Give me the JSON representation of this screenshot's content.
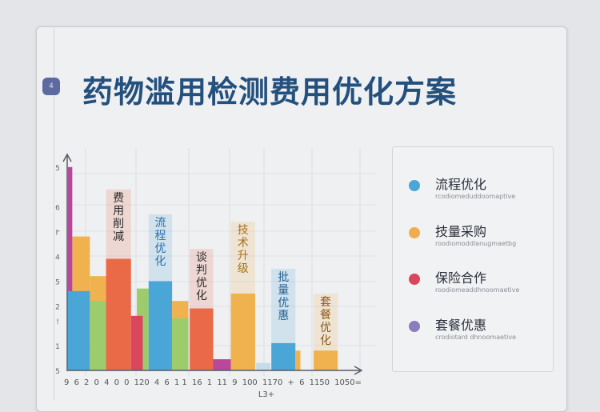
{
  "slide": {
    "badge": "4",
    "title": "药物滥用检测费用优化方案"
  },
  "legend": [
    {
      "label": "流程优化",
      "sub": "rcodiomeduddoomaptive",
      "color": "#4aa6d6"
    },
    {
      "label": "技量采购",
      "sub": "roodiomoddlanugmaetbg",
      "color": "#f0ad4e"
    },
    {
      "label": "保险合作",
      "sub": "roodiomeaddhnoomaetive",
      "color": "#d9465e"
    },
    {
      "label": "套餐优惠",
      "sub": "crodiotard dhnoomaetive",
      "color": "#8c7dbd"
    }
  ],
  "chart_data": {
    "type": "bar",
    "title": "",
    "xlabel": "L3+",
    "ylabel": "",
    "ylim": [
      0,
      8.6
    ],
    "xlim": [
      0,
      100
    ],
    "y_tick_labels": [
      {
        "v": 0,
        "t": "5"
      },
      {
        "v": 1,
        "t": "1"
      },
      {
        "v": 2,
        "t": "!"
      },
      {
        "v": 2.6,
        "t": "2"
      },
      {
        "v": 3.6,
        "t": "5"
      },
      {
        "v": 4.6,
        "t": "4"
      },
      {
        "v": 5.6,
        "t": "Ւ"
      },
      {
        "v": 6.6,
        "t": "6"
      },
      {
        "v": 8.2,
        "t": "5"
      }
    ],
    "x_tick_labels": [
      "9",
      "6",
      "2",
      "0",
      "4",
      "0",
      "0",
      "120",
      "4",
      "6",
      "1 1",
      "16",
      "1",
      "11",
      "9",
      "100",
      "1170",
      "+",
      "6",
      "1150",
      "1050="
    ],
    "bars": [
      {
        "x": [
          2,
          8
        ],
        "value": 5.4,
        "color": "#f0b24e"
      },
      {
        "x": [
          0.5,
          2
        ],
        "value": 8.2,
        "color": "#b9489a"
      },
      {
        "x": [
          0.5,
          8
        ],
        "value": 3.2,
        "color": "#4aa6d6"
      },
      {
        "x": [
          8,
          13.5
        ],
        "value": 3.8,
        "color": "#f0b24e"
      },
      {
        "x": [
          8,
          13.5
        ],
        "value": 2.8,
        "color": "#9ccc6b"
      },
      {
        "x": [
          13.5,
          22
        ],
        "value": 4.5,
        "color": "#ea6a48",
        "label": "费用削减",
        "label_top": 7.3
      },
      {
        "x": [
          24,
          28
        ],
        "value": 3.3,
        "color": "#9ccc6b"
      },
      {
        "x": [
          22,
          26
        ],
        "value": 2.2,
        "color": "#d9465e"
      },
      {
        "x": [
          28,
          36
        ],
        "value": 3.6,
        "color": "#4aa6d6",
        "label": "流程优化",
        "label_top": 6.3,
        "label_color": "#2a6fa8"
      },
      {
        "x": [
          36,
          41.5
        ],
        "value": 2.8,
        "color": "#f0b24e"
      },
      {
        "x": [
          36,
          41.5
        ],
        "value": 2.1,
        "color": "#9ccc6b"
      },
      {
        "x": [
          42,
          50
        ],
        "value": 2.5,
        "color": "#ea6a48",
        "label": "谈判优化",
        "label_top": 4.9
      },
      {
        "x": [
          50,
          56
        ],
        "value": 0.45,
        "color": "#b9489a"
      },
      {
        "x": [
          56,
          64.3
        ],
        "value": 3.1,
        "color": "#f0b24e",
        "label": "技术升级",
        "label_top": 6.0,
        "label_color": "#a8701a"
      },
      {
        "x": [
          64.6,
          69.5
        ],
        "value": 0.3,
        "color": "#c5dcea"
      },
      {
        "x": [
          69.8,
          78
        ],
        "value": 1.1,
        "color": "#4aa6d6",
        "label": "批量优惠",
        "label_top": 4.1,
        "label_color": "#1f5f95"
      },
      {
        "x": [
          78,
          79.7
        ],
        "value": 0.8,
        "color": "#f0b24e"
      },
      {
        "x": [
          84.2,
          92.4
        ],
        "value": 0.8,
        "color": "#f0b24e",
        "label": "套餐优化",
        "label_top": 3.1,
        "label_color": "#8a5a14"
      }
    ]
  }
}
